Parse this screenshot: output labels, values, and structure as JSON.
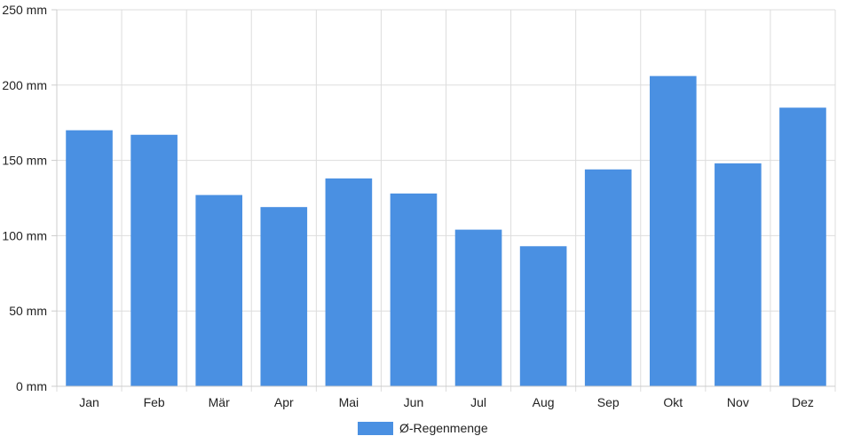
{
  "chart_data": {
    "type": "bar",
    "categories": [
      "Jan",
      "Feb",
      "Mär",
      "Apr",
      "Mai",
      "Jun",
      "Jul",
      "Aug",
      "Sep",
      "Okt",
      "Nov",
      "Dez"
    ],
    "series": [
      {
        "name": "Ø-Regenmenge",
        "values": [
          170,
          167,
          127,
          119,
          138,
          128,
          104,
          93,
          144,
          206,
          148,
          185
        ],
        "color": "#4a90e2"
      }
    ],
    "ylim": [
      0,
      250
    ],
    "yticks": [
      0,
      50,
      100,
      150,
      200,
      250
    ],
    "ytick_labels": [
      "0 mm",
      "50 mm",
      "100 mm",
      "150 mm",
      "200 mm",
      "250 mm"
    ],
    "grid": true,
    "legend_position": "bottom-center"
  }
}
